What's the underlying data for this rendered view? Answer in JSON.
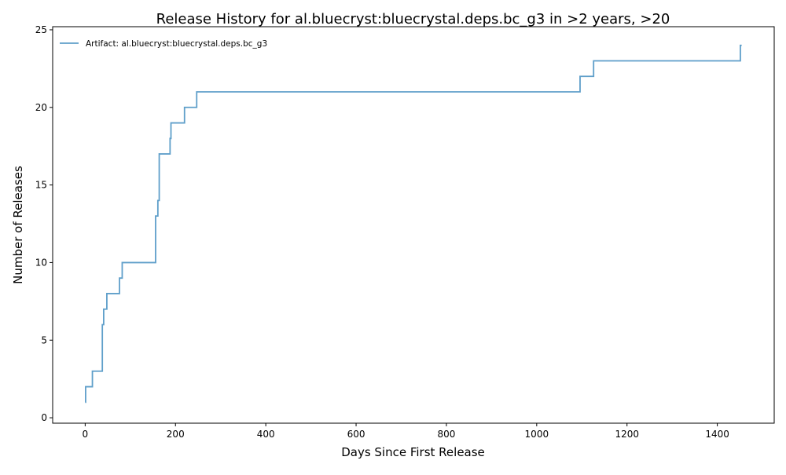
{
  "chart_data": {
    "type": "line",
    "step": "post",
    "title": "Release History for al.bluecryst:bluecrystal.deps.bc_g3 in >2 years, >20",
    "xlabel": "Days Since First Release",
    "ylabel": "Number of Releases",
    "xlim": [
      -72,
      1526
    ],
    "ylim": [
      -0.35,
      25.2
    ],
    "xticks": [
      0,
      200,
      400,
      600,
      800,
      1000,
      1200,
      1400
    ],
    "yticks": [
      0,
      5,
      10,
      15,
      20,
      25
    ],
    "grid": false,
    "legend": "top-left",
    "colors": {
      "series": "#5f9fca"
    },
    "series": [
      {
        "name": "Artifact: al.bluecryst:bluecrystal.deps.bc_g3",
        "x": [
          0,
          1,
          16,
          38,
          39,
          41,
          48,
          76,
          82,
          156,
          161,
          164,
          188,
          190,
          220,
          247,
          1096,
          1126,
          1451,
          1454
        ],
        "y": [
          1,
          2,
          3,
          6,
          6,
          7,
          8,
          9,
          10,
          13,
          14,
          17,
          18,
          19,
          20,
          21,
          22,
          23,
          24,
          24
        ]
      }
    ]
  }
}
